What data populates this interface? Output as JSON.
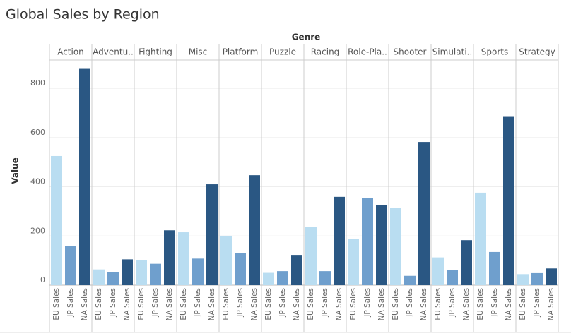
{
  "chart_data": {
    "type": "bar",
    "title": "Global Sales by Region",
    "x_label": "Genre",
    "y_label": "Value",
    "categories": [
      "Action",
      "Adventu..",
      "Fighting",
      "Misc",
      "Platform",
      "Puzzle",
      "Racing",
      "Role-Pla..",
      "Shooter",
      "Simulati..",
      "Sports",
      "Strategy"
    ],
    "series": [
      {
        "name": "EU Sales",
        "color": "#b9ddf1",
        "values": [
          525,
          64,
          101,
          215,
          201,
          50,
          238,
          188,
          313,
          113,
          376,
          45
        ]
      },
      {
        "name": "JP Sales",
        "color": "#6f9fcd",
        "values": [
          158,
          52,
          87,
          108,
          131,
          57,
          57,
          353,
          38,
          63,
          135,
          49
        ]
      },
      {
        "name": "NA Sales",
        "color": "#2a5783",
        "values": [
          879,
          105,
          223,
          410,
          447,
          123,
          359,
          327,
          582,
          183,
          684,
          68
        ]
      }
    ],
    "ylim": [
      0,
      915
    ],
    "yticks": [
      0,
      200,
      400,
      600,
      800
    ],
    "grid": true
  }
}
